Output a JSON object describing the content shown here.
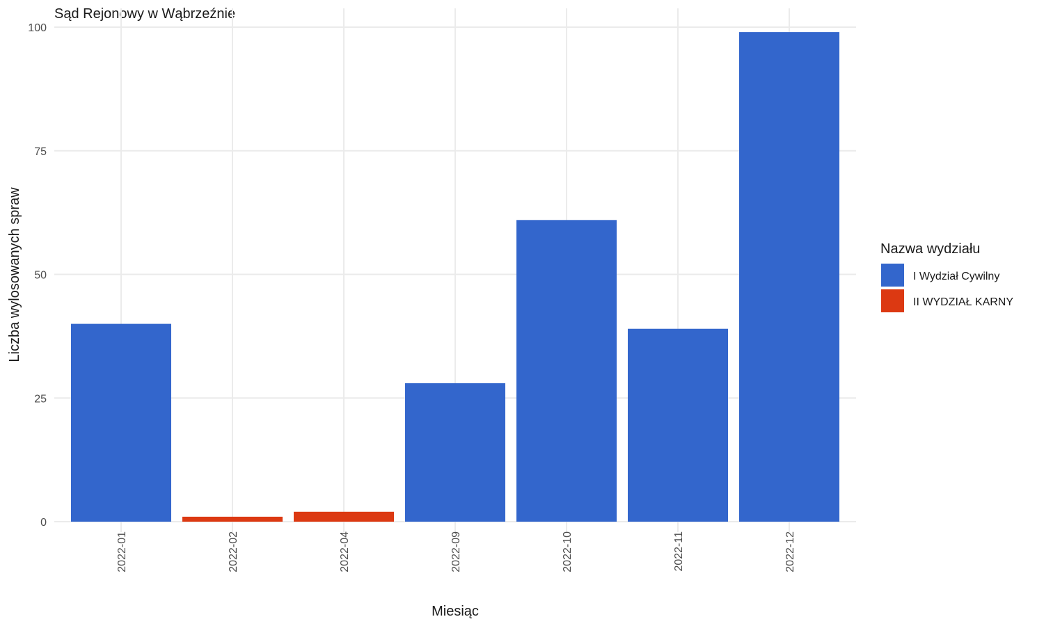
{
  "chart_data": {
    "type": "bar",
    "title": "Sąd Rejonowy w Wąbrzeźnie",
    "xlabel": "Miesiąc",
    "ylabel": "Liczba wylosowanych spraw",
    "ylim": [
      0,
      100
    ],
    "yticks": [
      0,
      25,
      50,
      75,
      100
    ],
    "grid": true,
    "categories": [
      "2022-01",
      "2022-02",
      "2022-04",
      "2022-09",
      "2022-10",
      "2022-11",
      "2022-12"
    ],
    "bars": [
      {
        "category": "2022-01",
        "value": 40,
        "group": "I Wydział Cywilny"
      },
      {
        "category": "2022-02",
        "value": 1,
        "group": "II WYDZIAŁ KARNY"
      },
      {
        "category": "2022-04",
        "value": 2,
        "group": "II WYDZIAŁ KARNY"
      },
      {
        "category": "2022-09",
        "value": 28,
        "group": "I Wydział Cywilny"
      },
      {
        "category": "2022-10",
        "value": 61,
        "group": "I Wydział Cywilny"
      },
      {
        "category": "2022-11",
        "value": 39,
        "group": "I Wydział Cywilny"
      },
      {
        "category": "2022-12",
        "value": 99,
        "group": "I Wydział Cywilny"
      }
    ],
    "legend": {
      "title": "Nazwa wydziału",
      "placement": "right",
      "items": [
        {
          "label": "I Wydział Cywilny",
          "color": "#3366CC"
        },
        {
          "label": "II WYDZIAŁ KARNY",
          "color": "#DC3912"
        }
      ]
    }
  }
}
